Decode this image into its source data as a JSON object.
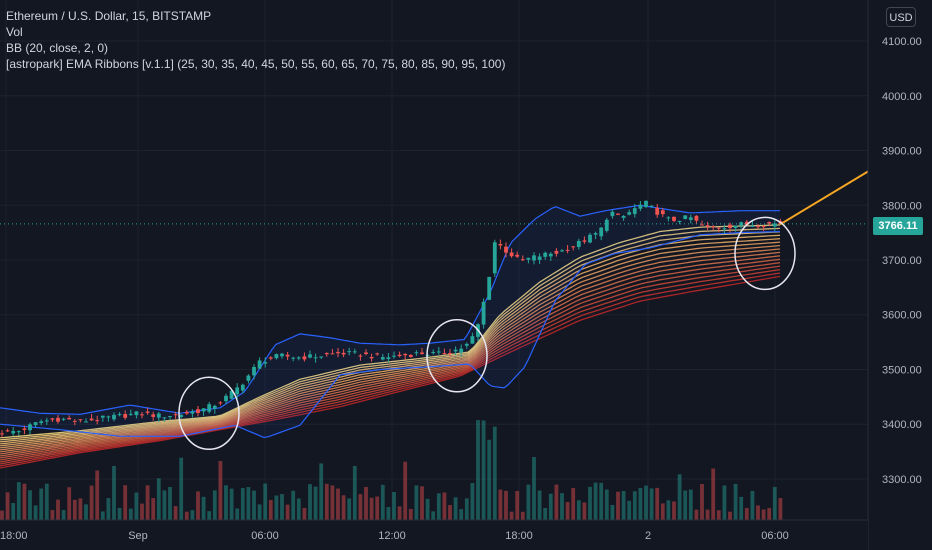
{
  "legend": {
    "symbol": "Ethereum / U.S. Dollar, 15, BITSTAMP",
    "volume": "Vol",
    "bollinger": "BB (20, close, 2, 0)",
    "ema_ribbons": "[astropark] EMA Ribbons [v.1.1] (25, 30, 35, 40, 45, 50, 55, 60, 65, 70, 75, 80, 85, 90, 95, 100)"
  },
  "currency_button": "USD",
  "last_price": "3766.11",
  "colors": {
    "background": "#131722",
    "bull": "#26a69a",
    "bear": "#ef5350",
    "bollinger": "#2962ff",
    "ribbon_fast": "#ffe082",
    "ribbon_slow": "#c62828",
    "projection": "#f5a623",
    "highlight_circle": "#e8e6f0"
  },
  "chart_data": {
    "type": "candlestick",
    "y_axis": {
      "ticks": [
        "3300.00",
        "3400.00",
        "3500.00",
        "3600.00",
        "3700.00",
        "3800.00",
        "3900.00",
        "4000.00",
        "4100.00"
      ],
      "range": [
        3225,
        4175
      ],
      "position": "right"
    },
    "x_axis": {
      "ticks": [
        "18:00",
        "Sep",
        "06:00",
        "12:00",
        "18:00",
        "2",
        "06:00"
      ]
    },
    "price_path": [
      [
        0,
        3385
      ],
      [
        20,
        3388
      ],
      [
        40,
        3405
      ],
      [
        60,
        3410
      ],
      [
        80,
        3405
      ],
      [
        100,
        3410
      ],
      [
        120,
        3415
      ],
      [
        140,
        3420
      ],
      [
        160,
        3415
      ],
      [
        180,
        3418
      ],
      [
        200,
        3425
      ],
      [
        220,
        3440
      ],
      [
        240,
        3470
      ],
      [
        260,
        3515
      ],
      [
        280,
        3525
      ],
      [
        300,
        3522
      ],
      [
        320,
        3525
      ],
      [
        340,
        3530
      ],
      [
        360,
        3528
      ],
      [
        380,
        3522
      ],
      [
        400,
        3525
      ],
      [
        420,
        3530
      ],
      [
        440,
        3528
      ],
      [
        460,
        3538
      ],
      [
        470,
        3548
      ],
      [
        480,
        3590
      ],
      [
        490,
        3680
      ],
      [
        495,
        3735
      ],
      [
        505,
        3718
      ],
      [
        520,
        3698
      ],
      [
        540,
        3708
      ],
      [
        560,
        3715
      ],
      [
        580,
        3732
      ],
      [
        600,
        3752
      ],
      [
        610,
        3790
      ],
      [
        620,
        3775
      ],
      [
        630,
        3788
      ],
      [
        645,
        3805
      ],
      [
        655,
        3790
      ],
      [
        670,
        3772
      ],
      [
        690,
        3778
      ],
      [
        705,
        3758
      ],
      [
        720,
        3760
      ],
      [
        740,
        3765
      ],
      [
        760,
        3765
      ],
      [
        780,
        3767
      ]
    ],
    "bollinger_upper": [
      [
        0,
        3430
      ],
      [
        40,
        3420
      ],
      [
        80,
        3418
      ],
      [
        130,
        3435
      ],
      [
        180,
        3420
      ],
      [
        220,
        3430
      ],
      [
        245,
        3460
      ],
      [
        275,
        3545
      ],
      [
        300,
        3565
      ],
      [
        330,
        3558
      ],
      [
        360,
        3548
      ],
      [
        400,
        3545
      ],
      [
        430,
        3548
      ],
      [
        465,
        3555
      ],
      [
        490,
        3640
      ],
      [
        510,
        3730
      ],
      [
        535,
        3775
      ],
      [
        555,
        3798
      ],
      [
        580,
        3780
      ],
      [
        605,
        3790
      ],
      [
        640,
        3800
      ],
      [
        690,
        3786
      ],
      [
        740,
        3790
      ],
      [
        780,
        3790
      ]
    ],
    "bollinger_lower": [
      [
        0,
        3400
      ],
      [
        60,
        3390
      ],
      [
        120,
        3378
      ],
      [
        180,
        3378
      ],
      [
        235,
        3398
      ],
      [
        265,
        3375
      ],
      [
        300,
        3398
      ],
      [
        340,
        3490
      ],
      [
        380,
        3500
      ],
      [
        430,
        3505
      ],
      [
        470,
        3510
      ],
      [
        490,
        3470
      ],
      [
        505,
        3466
      ],
      [
        525,
        3505
      ],
      [
        555,
        3625
      ],
      [
        585,
        3692
      ],
      [
        615,
        3712
      ],
      [
        650,
        3722
      ],
      [
        700,
        3746
      ],
      [
        740,
        3750
      ],
      [
        780,
        3752
      ]
    ],
    "ema_ribbon": {
      "periods": [
        25,
        30,
        35,
        40,
        45,
        50,
        55,
        60,
        65,
        70,
        75,
        80,
        85,
        90,
        95,
        100
      ],
      "fast": [
        [
          0,
          3375
        ],
        [
          80,
          3388
        ],
        [
          160,
          3405
        ],
        [
          220,
          3415
        ],
        [
          260,
          3450
        ],
        [
          300,
          3482
        ],
        [
          360,
          3508
        ],
        [
          420,
          3520
        ],
        [
          470,
          3532
        ],
        [
          500,
          3600
        ],
        [
          540,
          3660
        ],
        [
          580,
          3705
        ],
        [
          620,
          3732
        ],
        [
          660,
          3752
        ],
        [
          700,
          3760
        ],
        [
          780,
          3764
        ]
      ],
      "slow": [
        [
          0,
          3320
        ],
        [
          80,
          3348
        ],
        [
          160,
          3370
        ],
        [
          220,
          3390
        ],
        [
          280,
          3410
        ],
        [
          340,
          3432
        ],
        [
          400,
          3460
        ],
        [
          460,
          3488
        ],
        [
          520,
          3540
        ],
        [
          580,
          3590
        ],
        [
          640,
          3625
        ],
        [
          700,
          3645
        ],
        [
          780,
          3670
        ]
      ]
    },
    "projection_line": [
      [
        780,
        3765
      ],
      [
        880,
        3875
      ]
    ],
    "highlight_circles": [
      {
        "x": 209,
        "y": 3420
      },
      {
        "x": 457,
        "y": 3525
      },
      {
        "x": 765,
        "y": 3712
      }
    ]
  }
}
